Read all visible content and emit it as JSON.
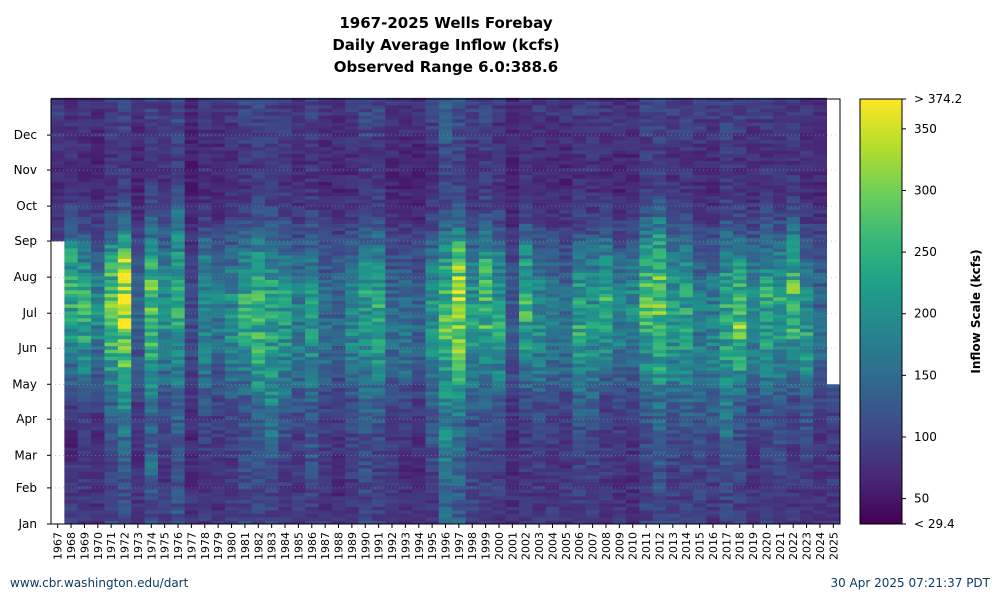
{
  "chart": {
    "title_lines": [
      "1967-2025 Wells Forebay",
      "Daily Average Inflow (kcfs)",
      "Observed Range 6.0:388.6"
    ]
  },
  "footer": {
    "left": "www.cbr.washington.edu/dart",
    "right": "30 Apr 2025 07:21:37 PDT"
  },
  "colors": {
    "viridis": [
      "#440154",
      "#482878",
      "#3e4a89",
      "#31688e",
      "#26828e",
      "#1f9e89",
      "#35b779",
      "#6ece58",
      "#b5de2b",
      "#fde725"
    ]
  },
  "chart_data": {
    "type": "heatmap",
    "title": "1967-2025 Wells Forebay Daily Average Inflow (kcfs)",
    "subtitle": "Observed Range 6.0:388.6",
    "x_categories": [
      "1967",
      "1968",
      "1969",
      "1970",
      "1971",
      "1972",
      "1973",
      "1974",
      "1975",
      "1976",
      "1977",
      "1978",
      "1979",
      "1980",
      "1981",
      "1982",
      "1983",
      "1984",
      "1985",
      "1986",
      "1987",
      "1988",
      "1989",
      "1990",
      "1991",
      "1992",
      "1993",
      "1994",
      "1995",
      "1996",
      "1997",
      "1998",
      "1999",
      "2000",
      "2001",
      "2002",
      "2003",
      "2004",
      "2005",
      "2006",
      "2007",
      "2008",
      "2009",
      "2010",
      "2011",
      "2012",
      "2013",
      "2014",
      "2015",
      "2016",
      "2017",
      "2018",
      "2019",
      "2020",
      "2021",
      "2022",
      "2023",
      "2024",
      "2025"
    ],
    "y_categories": [
      "Jan",
      "Feb",
      "Mar",
      "Apr",
      "May",
      "Jun",
      "Jul",
      "Aug",
      "Sep",
      "Oct",
      "Nov",
      "Dec"
    ],
    "colorbar": {
      "label": "Inflow Scale (kcfs)",
      "min": 29.4,
      "max": 374.2,
      "ticks": [
        50,
        100,
        150,
        200,
        250,
        300,
        350
      ],
      "min_label": "< 29.4",
      "max_label": "> 374.2"
    },
    "approx_monthly_values": {
      "1967": [
        null,
        null,
        null,
        null,
        null,
        null,
        null,
        null,
        80,
        70,
        75,
        90
      ],
      "1968": [
        90,
        85,
        60,
        100,
        150,
        200,
        250,
        230,
        120,
        80,
        75,
        80
      ],
      "1969": [
        85,
        80,
        90,
        110,
        180,
        230,
        240,
        180,
        100,
        70,
        75,
        85
      ],
      "1970": [
        80,
        70,
        75,
        90,
        130,
        180,
        190,
        140,
        90,
        70,
        65,
        75
      ],
      "1971": [
        100,
        95,
        110,
        140,
        220,
        260,
        280,
        230,
        120,
        85,
        80,
        95
      ],
      "1972": [
        110,
        120,
        150,
        200,
        260,
        300,
        360,
        300,
        140,
        90,
        90,
        100
      ],
      "1973": [
        80,
        75,
        80,
        90,
        120,
        140,
        150,
        120,
        80,
        65,
        70,
        75
      ],
      "1974": [
        110,
        160,
        130,
        160,
        220,
        250,
        280,
        220,
        140,
        95,
        90,
        100
      ],
      "1975": [
        85,
        80,
        90,
        110,
        160,
        200,
        200,
        170,
        110,
        75,
        80,
        85
      ],
      "1976": [
        120,
        110,
        130,
        150,
        180,
        220,
        230,
        210,
        180,
        100,
        90,
        110
      ],
      "1977": [
        80,
        75,
        70,
        80,
        100,
        110,
        100,
        90,
        70,
        60,
        60,
        70
      ],
      "1978": [
        85,
        85,
        95,
        120,
        160,
        180,
        200,
        170,
        100,
        70,
        75,
        85
      ],
      "1979": [
        80,
        75,
        85,
        100,
        130,
        160,
        170,
        130,
        85,
        65,
        70,
        80
      ],
      "1980": [
        90,
        85,
        90,
        120,
        170,
        200,
        190,
        150,
        100,
        70,
        75,
        85
      ],
      "1981": [
        100,
        110,
        110,
        130,
        180,
        230,
        230,
        180,
        110,
        80,
        85,
        100
      ],
      "1982": [
        110,
        110,
        140,
        160,
        220,
        250,
        240,
        210,
        130,
        90,
        90,
        100
      ],
      "1983": [
        100,
        110,
        160,
        180,
        200,
        230,
        230,
        180,
        120,
        85,
        90,
        100
      ],
      "1984": [
        90,
        90,
        110,
        140,
        180,
        210,
        210,
        170,
        110,
        80,
        85,
        90
      ],
      "1985": [
        85,
        85,
        95,
        120,
        160,
        170,
        170,
        140,
        95,
        70,
        70,
        80
      ],
      "1986": [
        95,
        110,
        130,
        130,
        180,
        210,
        200,
        160,
        110,
        80,
        80,
        95
      ],
      "1987": [
        80,
        80,
        90,
        100,
        140,
        150,
        140,
        120,
        85,
        65,
        70,
        80
      ],
      "1988": [
        75,
        75,
        80,
        90,
        120,
        140,
        140,
        120,
        80,
        65,
        70,
        75
      ],
      "1989": [
        80,
        90,
        100,
        110,
        160,
        190,
        190,
        150,
        95,
        70,
        75,
        85
      ],
      "1990": [
        100,
        110,
        110,
        140,
        170,
        200,
        220,
        180,
        110,
        85,
        90,
        110
      ],
      "1991": [
        100,
        100,
        110,
        140,
        190,
        220,
        230,
        190,
        120,
        85,
        85,
        100
      ],
      "1992": [
        80,
        85,
        90,
        100,
        140,
        150,
        140,
        120,
        85,
        65,
        70,
        80
      ],
      "1993": [
        75,
        75,
        80,
        100,
        150,
        160,
        150,
        120,
        80,
        65,
        70,
        75
      ],
      "1994": [
        75,
        70,
        75,
        85,
        120,
        140,
        130,
        110,
        75,
        60,
        65,
        75
      ],
      "1995": [
        85,
        95,
        120,
        130,
        170,
        200,
        200,
        160,
        100,
        75,
        80,
        95
      ],
      "1996": [
        140,
        170,
        180,
        180,
        230,
        260,
        250,
        210,
        140,
        100,
        110,
        140
      ],
      "1997": [
        130,
        140,
        150,
        180,
        260,
        320,
        330,
        280,
        150,
        100,
        100,
        120
      ],
      "1998": [
        100,
        100,
        110,
        130,
        180,
        220,
        210,
        170,
        100,
        75,
        80,
        95
      ],
      "1999": [
        100,
        100,
        110,
        130,
        190,
        250,
        260,
        220,
        130,
        90,
        90,
        100
      ],
      "2000": [
        90,
        90,
        100,
        130,
        190,
        220,
        220,
        180,
        110,
        80,
        80,
        85
      ],
      "2001": [
        75,
        70,
        75,
        85,
        110,
        130,
        120,
        100,
        75,
        60,
        60,
        70
      ],
      "2002": [
        80,
        85,
        90,
        110,
        170,
        230,
        250,
        210,
        120,
        80,
        80,
        85
      ],
      "2003": [
        85,
        85,
        100,
        120,
        170,
        200,
        190,
        150,
        95,
        70,
        75,
        85
      ],
      "2004": [
        85,
        80,
        90,
        110,
        150,
        170,
        160,
        130,
        90,
        70,
        70,
        80
      ],
      "2005": [
        80,
        80,
        85,
        100,
        140,
        160,
        150,
        120,
        85,
        65,
        70,
        80
      ],
      "2006": [
        95,
        95,
        110,
        140,
        190,
        230,
        220,
        170,
        100,
        75,
        80,
        90
      ],
      "2007": [
        95,
        95,
        110,
        130,
        180,
        200,
        200,
        160,
        100,
        75,
        80,
        95
      ],
      "2008": [
        80,
        85,
        90,
        100,
        160,
        230,
        240,
        190,
        110,
        75,
        75,
        85
      ],
      "2009": [
        80,
        80,
        85,
        100,
        150,
        180,
        180,
        140,
        90,
        65,
        70,
        80
      ],
      "2010": [
        75,
        75,
        80,
        95,
        130,
        180,
        190,
        150,
        90,
        65,
        70,
        75
      ],
      "2011": [
        100,
        100,
        110,
        130,
        190,
        250,
        260,
        230,
        140,
        90,
        90,
        100
      ],
      "2012": [
        110,
        120,
        130,
        160,
        220,
        260,
        290,
        270,
        170,
        100,
        95,
        110
      ],
      "2013": [
        95,
        95,
        110,
        140,
        190,
        210,
        210,
        170,
        110,
        80,
        80,
        95
      ],
      "2014": [
        95,
        100,
        120,
        150,
        190,
        220,
        220,
        180,
        110,
        80,
        85,
        95
      ],
      "2015": [
        95,
        100,
        110,
        130,
        160,
        170,
        160,
        130,
        90,
        70,
        75,
        90
      ],
      "2016": [
        85,
        95,
        110,
        140,
        170,
        180,
        170,
        140,
        90,
        70,
        75,
        90
      ],
      "2017": [
        95,
        110,
        150,
        180,
        210,
        240,
        230,
        190,
        120,
        85,
        90,
        100
      ],
      "2018": [
        90,
        100,
        110,
        140,
        220,
        290,
        250,
        190,
        110,
        80,
        80,
        95
      ],
      "2019": [
        80,
        80,
        90,
        110,
        160,
        190,
        180,
        150,
        100,
        70,
        75,
        85
      ],
      "2020": [
        90,
        90,
        100,
        130,
        190,
        220,
        230,
        190,
        120,
        80,
        80,
        90
      ],
      "2021": [
        95,
        100,
        110,
        130,
        180,
        230,
        230,
        180,
        110,
        75,
        80,
        95
      ],
      "2022": [
        85,
        85,
        95,
        110,
        150,
        240,
        270,
        230,
        140,
        85,
        80,
        90
      ],
      "2023": [
        90,
        95,
        105,
        130,
        220,
        220,
        190,
        150,
        95,
        70,
        75,
        85
      ],
      "2024": [
        80,
        80,
        85,
        100,
        130,
        150,
        140,
        120,
        85,
        65,
        70,
        80
      ],
      "2025": [
        85,
        85,
        90,
        110,
        null,
        null,
        null,
        null,
        null,
        null,
        null,
        null
      ]
    }
  }
}
